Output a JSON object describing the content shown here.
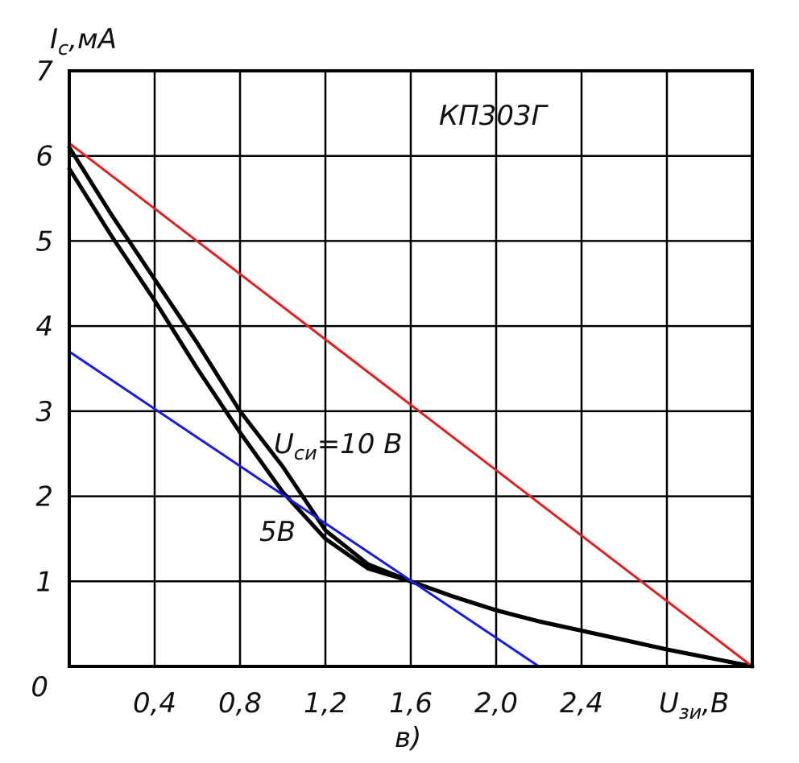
{
  "chart_data": {
    "type": "line",
    "title": "КП303Г",
    "ylabel": {
      "main": "I",
      "sub": "с",
      "unit": ",мА"
    },
    "xlabel": {
      "main": "U",
      "sub": "зи",
      "unit": ",В"
    },
    "panel_label": "в)",
    "origin_label": "0",
    "xlim": [
      0,
      3.2
    ],
    "ylim": [
      0,
      7
    ],
    "x_ticks": [
      0.4,
      0.8,
      1.2,
      1.6,
      2.0,
      2.4
    ],
    "x_tick_labels": [
      "0,4",
      "0,8",
      "1,2",
      "1,6",
      "2,0",
      "2,4"
    ],
    "y_ticks": [
      1,
      2,
      3,
      4,
      5,
      6,
      7
    ],
    "y_tick_labels": [
      "1",
      "2",
      "3",
      "4",
      "5",
      "6",
      "7"
    ],
    "grid": true,
    "annotations": [
      {
        "text_main": "U",
        "text_sub": "си",
        "text_rest": "=10 В",
        "x": 0.95,
        "y": 2.6
      },
      {
        "text": "5В",
        "x": 0.88,
        "y": 1.55
      }
    ],
    "series": [
      {
        "id": "vds-10v",
        "color": "#000000",
        "x": [
          0,
          0.2,
          0.4,
          0.6,
          0.8,
          1.0,
          1.2,
          1.4,
          1.6,
          1.8,
          2.0,
          2.2,
          2.4,
          2.6,
          2.8,
          3.0,
          3.2
        ],
        "y": [
          6.1,
          5.3,
          4.55,
          3.8,
          3.0,
          2.35,
          1.6,
          1.2,
          1.0,
          0.82,
          0.66,
          0.53,
          0.42,
          0.31,
          0.2,
          0.1,
          0.0
        ]
      },
      {
        "id": "vds-5v",
        "color": "#000000",
        "x": [
          0,
          0.2,
          0.4,
          0.6,
          0.8,
          1.0,
          1.2,
          1.4,
          1.6,
          1.8,
          2.0,
          2.2,
          2.4,
          2.6,
          2.8,
          3.0,
          3.2
        ],
        "y": [
          5.85,
          5.05,
          4.3,
          3.5,
          2.75,
          2.05,
          1.5,
          1.15,
          1.0,
          0.82,
          0.66,
          0.53,
          0.42,
          0.31,
          0.2,
          0.1,
          0.0
        ]
      },
      {
        "id": "red-line",
        "color": "#e02020",
        "x": [
          0,
          3.2
        ],
        "y": [
          6.15,
          0.0
        ]
      },
      {
        "id": "blue-line",
        "color": "#1a1ae0",
        "x": [
          0,
          2.2
        ],
        "y": [
          3.7,
          0.0
        ]
      }
    ]
  }
}
